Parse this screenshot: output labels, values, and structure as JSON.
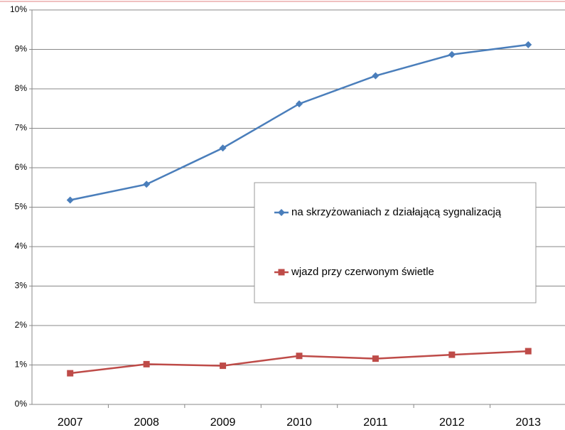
{
  "chart_data": {
    "type": "line",
    "categories": [
      "2007",
      "2008",
      "2009",
      "2010",
      "2011",
      "2012",
      "2013"
    ],
    "series": [
      {
        "name": "na skrzyżowaniach z działającą sygnalizacją",
        "color": "#4a7ebb",
        "marker": "diamond",
        "values": [
          5.18,
          5.58,
          6.5,
          7.62,
          8.33,
          8.87,
          9.12
        ]
      },
      {
        "name": "wjazd przy czerwonym świetle",
        "color": "#be4b48",
        "marker": "square",
        "values": [
          0.79,
          1.02,
          0.98,
          1.23,
          1.16,
          1.26,
          1.35
        ]
      }
    ],
    "ylim": [
      0,
      10
    ],
    "yticks": [
      {
        "value": 0,
        "label": "0%"
      },
      {
        "value": 1,
        "label": "1%"
      },
      {
        "value": 2,
        "label": "2%"
      },
      {
        "value": 3,
        "label": "3%"
      },
      {
        "value": 4,
        "label": "4%"
      },
      {
        "value": 5,
        "label": "5%"
      },
      {
        "value": 6,
        "label": "6%"
      },
      {
        "value": 7,
        "label": "7%"
      },
      {
        "value": 8,
        "label": "8%"
      },
      {
        "value": 9,
        "label": "9%"
      },
      {
        "value": 10,
        "label": "10%"
      }
    ],
    "grid": true
  }
}
